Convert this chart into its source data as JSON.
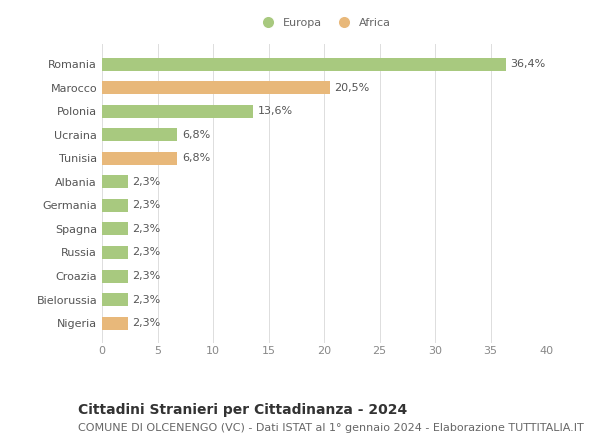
{
  "categories": [
    "Romania",
    "Marocco",
    "Polonia",
    "Ucraina",
    "Tunisia",
    "Albania",
    "Germania",
    "Spagna",
    "Russia",
    "Croazia",
    "Bielorussia",
    "Nigeria"
  ],
  "values": [
    36.4,
    20.5,
    13.6,
    6.8,
    6.8,
    2.3,
    2.3,
    2.3,
    2.3,
    2.3,
    2.3,
    2.3
  ],
  "labels": [
    "36,4%",
    "20,5%",
    "13,6%",
    "6,8%",
    "6,8%",
    "2,3%",
    "2,3%",
    "2,3%",
    "2,3%",
    "2,3%",
    "2,3%",
    "2,3%"
  ],
  "continent": [
    "Europa",
    "Africa",
    "Europa",
    "Europa",
    "Africa",
    "Europa",
    "Europa",
    "Europa",
    "Europa",
    "Europa",
    "Europa",
    "Africa"
  ],
  "color_europa": "#a8c97f",
  "color_africa": "#e8b87a",
  "background_color": "#ffffff",
  "title": "Cittadini Stranieri per Cittadinanza - 2024",
  "subtitle": "COMUNE DI OLCENENGO (VC) - Dati ISTAT al 1° gennaio 2024 - Elaborazione TUTTITALIA.IT",
  "xlim": [
    0,
    40
  ],
  "xticks": [
    0,
    5,
    10,
    15,
    20,
    25,
    30,
    35,
    40
  ],
  "legend_europa": "Europa",
  "legend_africa": "Africa",
  "title_fontsize": 10,
  "subtitle_fontsize": 8,
  "tick_fontsize": 8,
  "label_fontsize": 8,
  "bar_height": 0.55
}
